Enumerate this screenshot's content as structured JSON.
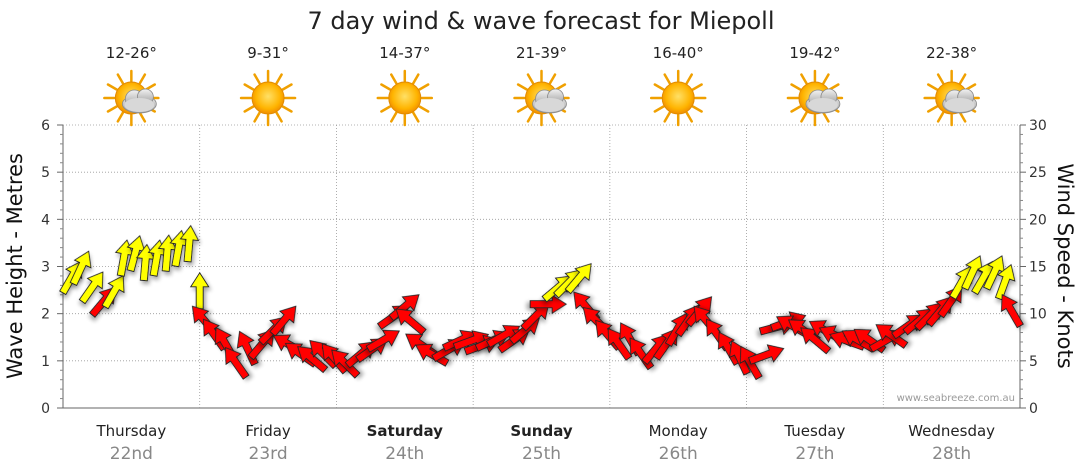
{
  "chart_data": {
    "type": "line",
    "title": "7 day wind & wave forecast for Miepoll",
    "ylabel_left": "Wave Height - Metres",
    "ylabel_right": "Wind Speed - Knots",
    "ylim_left": [
      0,
      6
    ],
    "ylim_right": [
      0,
      30
    ],
    "yticks_left": [
      "0",
      "1",
      "2",
      "3",
      "4",
      "5",
      "6"
    ],
    "yticks_right": [
      "0",
      "5",
      "10",
      "15",
      "20",
      "25",
      "30"
    ],
    "grid": true,
    "days": [
      {
        "name": "Thursday",
        "date": "22nd",
        "temp": "12-26°",
        "icon": "sun-cloud-icon",
        "bold": false
      },
      {
        "name": "Friday",
        "date": "23rd",
        "temp": "9-31°",
        "icon": "sun-icon",
        "bold": false
      },
      {
        "name": "Saturday",
        "date": "24th",
        "temp": "14-37°",
        "icon": "sun-icon",
        "bold": true
      },
      {
        "name": "Sunday",
        "date": "25th",
        "temp": "21-39°",
        "icon": "sun-cloud-icon",
        "bold": true
      },
      {
        "name": "Monday",
        "date": "26th",
        "temp": "16-40°",
        "icon": "sun-icon",
        "bold": false
      },
      {
        "name": "Tuesday",
        "date": "27th",
        "temp": "19-42°",
        "icon": "sun-cloud-icon",
        "bold": false
      },
      {
        "name": "Wednesday",
        "date": "28th",
        "temp": "22-38°",
        "icon": "sun-cloud-icon",
        "bold": false
      }
    ],
    "series": [
      {
        "name": "Wind Speed - Knots",
        "x_unit": "days",
        "points": [
          {
            "t": 0.05,
            "kt": 13.5,
            "dir": 30
          },
          {
            "t": 0.12,
            "kt": 14.5,
            "dir": 25
          },
          {
            "t": 0.2,
            "kt": 12.5,
            "dir": 35
          },
          {
            "t": 0.28,
            "kt": 11.0,
            "dir": 40
          },
          {
            "t": 0.36,
            "kt": 12.0,
            "dir": 30
          },
          {
            "t": 0.44,
            "kt": 15.5,
            "dir": 10
          },
          {
            "t": 0.52,
            "kt": 16.0,
            "dir": 15
          },
          {
            "t": 0.6,
            "kt": 15.0,
            "dir": 5
          },
          {
            "t": 0.68,
            "kt": 15.5,
            "dir": 10
          },
          {
            "t": 0.76,
            "kt": 16.0,
            "dir": 5
          },
          {
            "t": 0.84,
            "kt": 16.5,
            "dir": 10
          },
          {
            "t": 0.92,
            "kt": 17.0,
            "dir": 5
          },
          {
            "t": 1.0,
            "kt": 12.0,
            "dir": 0
          },
          {
            "t": 1.05,
            "kt": 9.0,
            "dir": -40
          },
          {
            "t": 1.12,
            "kt": 7.5,
            "dir": -35
          },
          {
            "t": 1.2,
            "kt": 6.5,
            "dir": -30
          },
          {
            "t": 1.28,
            "kt": 4.5,
            "dir": -35
          },
          {
            "t": 1.36,
            "kt": 6.0,
            "dir": -25
          },
          {
            "t": 1.44,
            "kt": 6.5,
            "dir": 40
          },
          {
            "t": 1.52,
            "kt": 8.0,
            "dir": 45
          },
          {
            "t": 1.6,
            "kt": 9.0,
            "dir": 40
          },
          {
            "t": 1.68,
            "kt": 6.5,
            "dir": -60
          },
          {
            "t": 1.76,
            "kt": 5.5,
            "dir": -55
          },
          {
            "t": 1.84,
            "kt": 5.0,
            "dir": -50
          },
          {
            "t": 1.92,
            "kt": 5.5,
            "dir": -45
          },
          {
            "t": 2.0,
            "kt": 5.0,
            "dir": -40
          },
          {
            "t": 2.08,
            "kt": 4.5,
            "dir": -45
          },
          {
            "t": 2.16,
            "kt": 5.5,
            "dir": 50
          },
          {
            "t": 2.24,
            "kt": 6.0,
            "dir": 55
          },
          {
            "t": 2.32,
            "kt": 7.0,
            "dir": 60
          },
          {
            "t": 2.4,
            "kt": 9.5,
            "dir": 55
          },
          {
            "t": 2.48,
            "kt": 10.5,
            "dir": 50
          },
          {
            "t": 2.56,
            "kt": 9.0,
            "dir": -50
          },
          {
            "t": 2.64,
            "kt": 6.5,
            "dir": -55
          },
          {
            "t": 2.72,
            "kt": 5.5,
            "dir": -60
          },
          {
            "t": 2.8,
            "kt": 6.0,
            "dir": 60
          },
          {
            "t": 2.88,
            "kt": 7.0,
            "dir": 65
          },
          {
            "t": 2.96,
            "kt": 7.0,
            "dir": 70
          },
          {
            "t": 3.04,
            "kt": 6.5,
            "dir": 70
          },
          {
            "t": 3.12,
            "kt": 7.0,
            "dir": 65
          },
          {
            "t": 3.2,
            "kt": 7.5,
            "dir": 60
          },
          {
            "t": 3.28,
            "kt": 7.0,
            "dir": 55
          },
          {
            "t": 3.36,
            "kt": 8.0,
            "dir": 50
          },
          {
            "t": 3.44,
            "kt": 9.5,
            "dir": 45
          },
          {
            "t": 3.52,
            "kt": 11.0,
            "dir": 90
          },
          {
            "t": 3.6,
            "kt": 12.5,
            "dir": 50
          },
          {
            "t": 3.68,
            "kt": 13.0,
            "dir": 45
          },
          {
            "t": 3.76,
            "kt": 13.5,
            "dir": 40
          },
          {
            "t": 3.84,
            "kt": 10.5,
            "dir": -40
          },
          {
            "t": 3.92,
            "kt": 9.0,
            "dir": -45
          },
          {
            "t": 4.0,
            "kt": 7.5,
            "dir": -40
          },
          {
            "t": 4.08,
            "kt": 6.5,
            "dir": -35
          },
          {
            "t": 4.16,
            "kt": 7.0,
            "dir": -30
          },
          {
            "t": 4.24,
            "kt": 5.5,
            "dir": -35
          },
          {
            "t": 4.32,
            "kt": 6.0,
            "dir": 40
          },
          {
            "t": 4.4,
            "kt": 6.5,
            "dir": 35
          },
          {
            "t": 4.48,
            "kt": 8.0,
            "dir": 30
          },
          {
            "t": 4.56,
            "kt": 9.0,
            "dir": 35
          },
          {
            "t": 4.64,
            "kt": 10.0,
            "dir": 40
          },
          {
            "t": 4.72,
            "kt": 9.0,
            "dir": -40
          },
          {
            "t": 4.8,
            "kt": 7.5,
            "dir": -35
          },
          {
            "t": 4.88,
            "kt": 6.0,
            "dir": -30
          },
          {
            "t": 4.96,
            "kt": 5.0,
            "dir": -25
          },
          {
            "t": 5.04,
            "kt": 4.5,
            "dir": -30
          },
          {
            "t": 5.12,
            "kt": 5.5,
            "dir": 70
          },
          {
            "t": 5.2,
            "kt": 8.5,
            "dir": 75
          },
          {
            "t": 5.28,
            "kt": 9.0,
            "dir": 70
          },
          {
            "t": 5.36,
            "kt": 8.5,
            "dir": -60
          },
          {
            "t": 5.44,
            "kt": 8.0,
            "dir": -55
          },
          {
            "t": 5.52,
            "kt": 7.0,
            "dir": -50
          },
          {
            "t": 5.6,
            "kt": 8.0,
            "dir": -60
          },
          {
            "t": 5.68,
            "kt": 7.5,
            "dir": -65
          },
          {
            "t": 5.76,
            "kt": 7.0,
            "dir": -70
          },
          {
            "t": 5.84,
            "kt": 7.0,
            "dir": -60
          },
          {
            "t": 5.92,
            "kt": 7.0,
            "dir": -55
          },
          {
            "t": 6.0,
            "kt": 7.0,
            "dir": 60
          },
          {
            "t": 6.08,
            "kt": 7.5,
            "dir": -55
          },
          {
            "t": 6.16,
            "kt": 8.5,
            "dir": 55
          },
          {
            "t": 6.24,
            "kt": 9.0,
            "dir": 50
          },
          {
            "t": 6.32,
            "kt": 9.5,
            "dir": 45
          },
          {
            "t": 6.4,
            "kt": 10.0,
            "dir": 40
          },
          {
            "t": 6.48,
            "kt": 11.0,
            "dir": 35
          },
          {
            "t": 6.56,
            "kt": 13.0,
            "dir": 30
          },
          {
            "t": 6.64,
            "kt": 14.0,
            "dir": 25
          },
          {
            "t": 6.72,
            "kt": 13.5,
            "dir": 30
          },
          {
            "t": 6.8,
            "kt": 14.0,
            "dir": 25
          },
          {
            "t": 6.88,
            "kt": 13.0,
            "dir": 20
          },
          {
            "t": 6.95,
            "kt": 10.0,
            "dir": -30
          }
        ]
      }
    ],
    "watermark": "www.seabreeze.com.au"
  }
}
